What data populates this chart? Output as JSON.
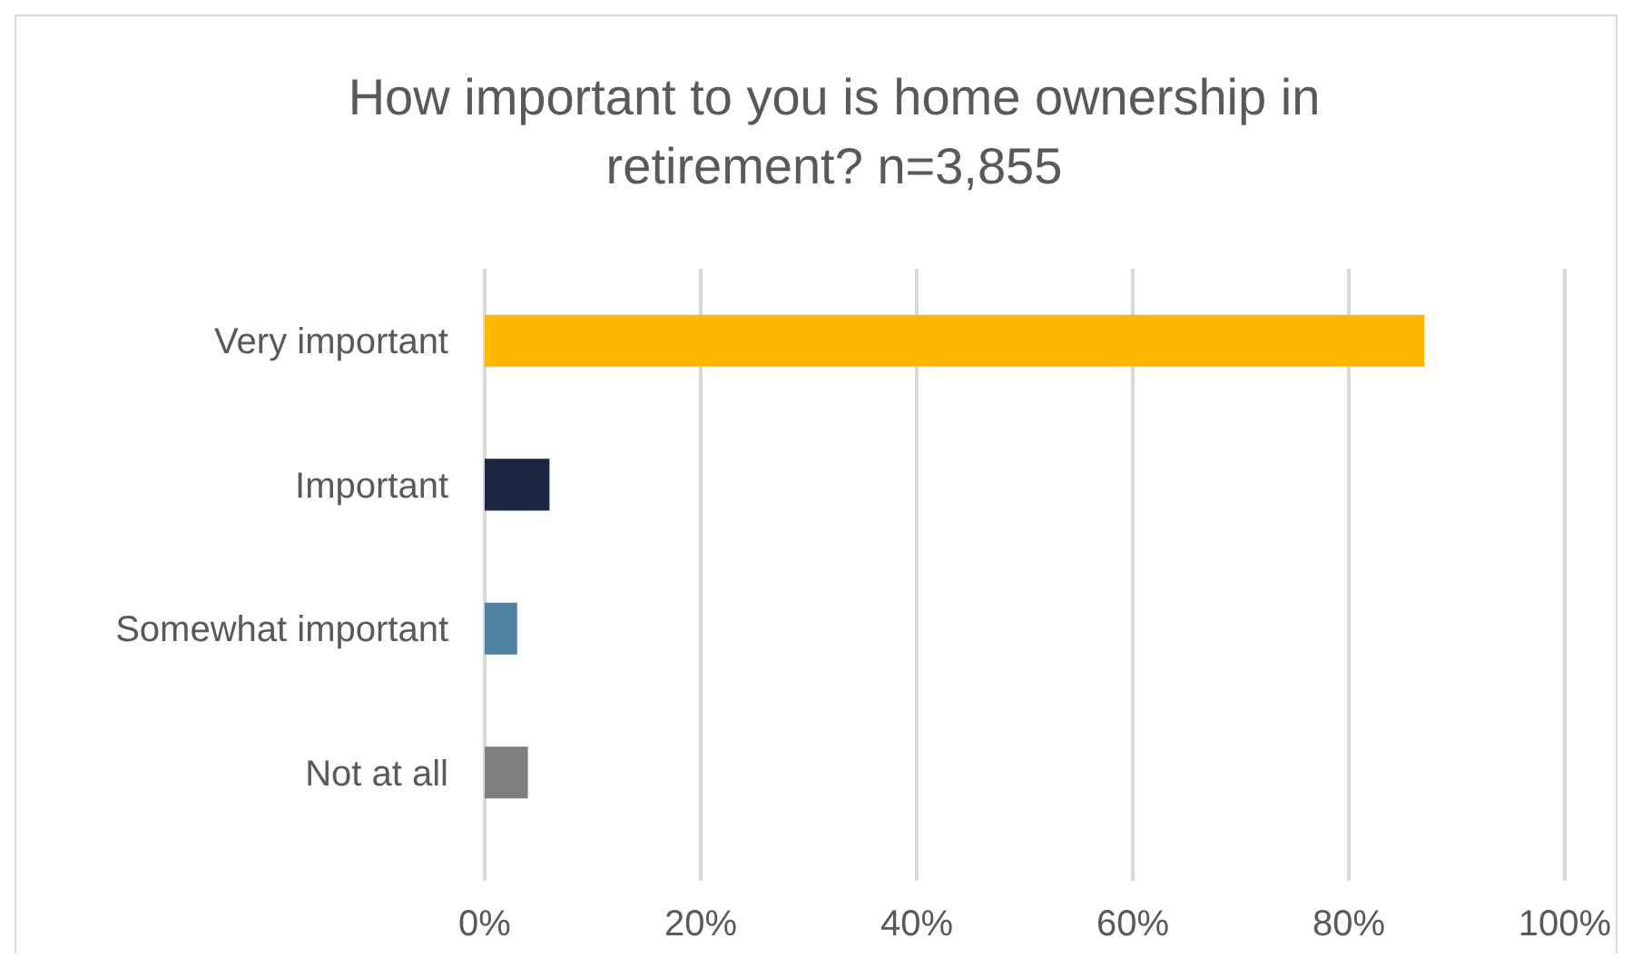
{
  "chart_data": {
    "type": "bar",
    "orientation": "horizontal",
    "title": "How important to you is home ownership in retirement? n=3,855",
    "categories": [
      "Very important",
      "Important",
      "Somewhat important",
      "Not at all"
    ],
    "values": [
      87,
      6,
      3,
      4
    ],
    "colors": [
      "#fdb600",
      "#1a2642",
      "#4f83a1",
      "#7f7f7f"
    ],
    "xlim": [
      0,
      100
    ],
    "xticks": [
      {
        "value": 0,
        "label": "0%"
      },
      {
        "value": 20,
        "label": "20%"
      },
      {
        "value": 40,
        "label": "40%"
      },
      {
        "value": 60,
        "label": "60%"
      },
      {
        "value": 80,
        "label": "80%"
      },
      {
        "value": 100,
        "label": "100%"
      }
    ],
    "grid": "x"
  }
}
